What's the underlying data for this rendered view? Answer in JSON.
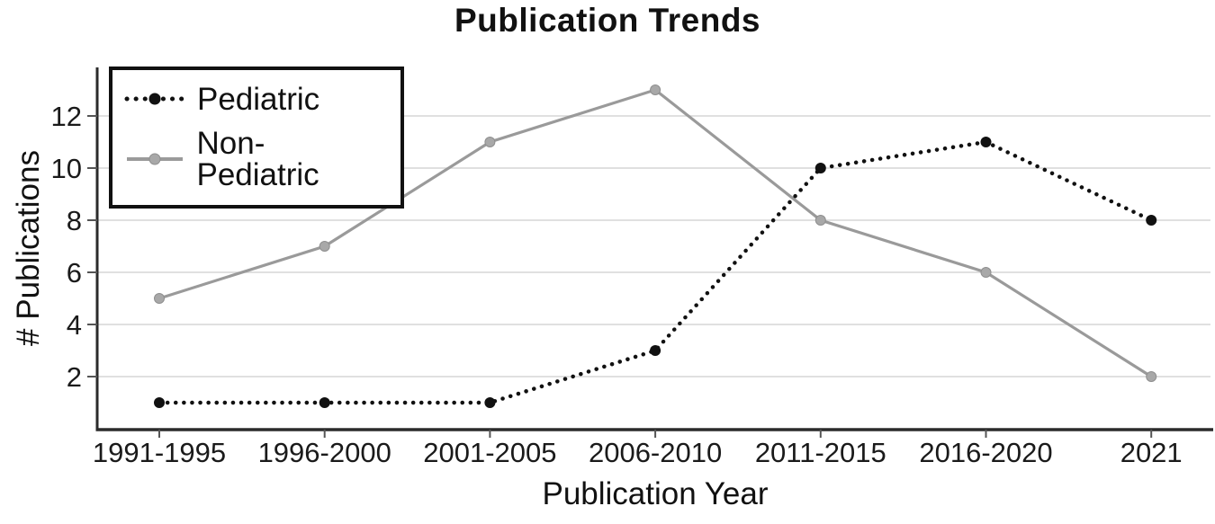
{
  "chart_data": {
    "type": "line",
    "title": "Publication Trends",
    "xlabel": "Publication Year",
    "ylabel": "# Publications",
    "categories": [
      "1991-1995",
      "1996-2000",
      "2001-2005",
      "2006-2010",
      "2011-2015",
      "2016-2020",
      "2021"
    ],
    "series": [
      {
        "name": "Pediatric",
        "values": [
          1,
          1,
          1,
          3,
          10,
          11,
          8
        ],
        "color": "#111111",
        "line_style": "dotted",
        "marker": "circle",
        "marker_color": "#111111"
      },
      {
        "name": "Non-Pediatric",
        "values": [
          5,
          7,
          11,
          13,
          8,
          6,
          2
        ],
        "color": "#9a9a9a",
        "line_style": "solid",
        "marker": "circle",
        "marker_color": "#a8a8a8"
      }
    ],
    "yticks": [
      2,
      4,
      6,
      8,
      10,
      12
    ],
    "ylim": [
      0,
      13.9
    ],
    "grid": "horizontal-only",
    "legend_position": "top-left",
    "colors": {
      "background": "#ffffff",
      "gridline": "#d6d6d6",
      "axis": "#2b2b2b",
      "text": "#1a1a1a"
    }
  }
}
